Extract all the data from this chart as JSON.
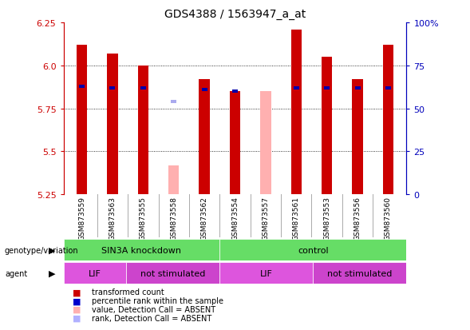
{
  "title": "GDS4388 / 1563947_a_at",
  "samples": [
    "GSM873559",
    "GSM873563",
    "GSM873555",
    "GSM873558",
    "GSM873562",
    "GSM873554",
    "GSM873557",
    "GSM873561",
    "GSM873553",
    "GSM873556",
    "GSM873560"
  ],
  "red_values": [
    6.12,
    6.07,
    6.0,
    null,
    5.92,
    5.85,
    null,
    6.21,
    6.05,
    5.92,
    6.12
  ],
  "pink_values": [
    null,
    null,
    null,
    5.42,
    null,
    null,
    5.85,
    null,
    null,
    null,
    null
  ],
  "blue_values": [
    5.88,
    5.87,
    5.87,
    null,
    5.86,
    5.85,
    null,
    5.87,
    5.87,
    5.87,
    5.87
  ],
  "light_blue_values": [
    null,
    null,
    null,
    5.79,
    null,
    null,
    null,
    null,
    null,
    null,
    null
  ],
  "ymin": 5.25,
  "ymax": 6.25,
  "yticks": [
    5.25,
    5.5,
    5.75,
    6.0,
    6.25
  ],
  "right_yticks": [
    0,
    25,
    50,
    75,
    100
  ],
  "right_ytick_labels": [
    "0",
    "25",
    "50",
    "75",
    "100%"
  ],
  "bar_width": 0.35,
  "blue_bar_width": 0.18,
  "blue_bar_height": 0.018,
  "groups": [
    {
      "label": "SIN3A knockdown",
      "start": 0,
      "end": 5,
      "color": "#66dd66"
    },
    {
      "label": "control",
      "start": 5,
      "end": 11,
      "color": "#66dd66"
    }
  ],
  "agents": [
    {
      "label": "LIF",
      "start": 0,
      "end": 2,
      "color": "#dd55dd"
    },
    {
      "label": "not stimulated",
      "start": 2,
      "end": 5,
      "color": "#cc44cc"
    },
    {
      "label": "LIF",
      "start": 5,
      "end": 8,
      "color": "#dd55dd"
    },
    {
      "label": "not stimulated",
      "start": 8,
      "end": 11,
      "color": "#cc44cc"
    }
  ],
  "legend_items": [
    {
      "label": "transformed count",
      "color": "#cc0000"
    },
    {
      "label": "percentile rank within the sample",
      "color": "#0000cc"
    },
    {
      "label": "value, Detection Call = ABSENT",
      "color": "#ffb0b0"
    },
    {
      "label": "rank, Detection Call = ABSENT",
      "color": "#b0b0ff"
    }
  ],
  "red_color": "#cc0000",
  "pink_color": "#ffb0b0",
  "blue_color": "#0000aa",
  "light_blue_color": "#aaaaee",
  "bg_color": "#ffffff",
  "grid_color": "#000000",
  "axis_color_left": "#cc0000",
  "axis_color_right": "#0000bb",
  "sample_area_color": "#cccccc",
  "separator_color": "#aaaaaa"
}
